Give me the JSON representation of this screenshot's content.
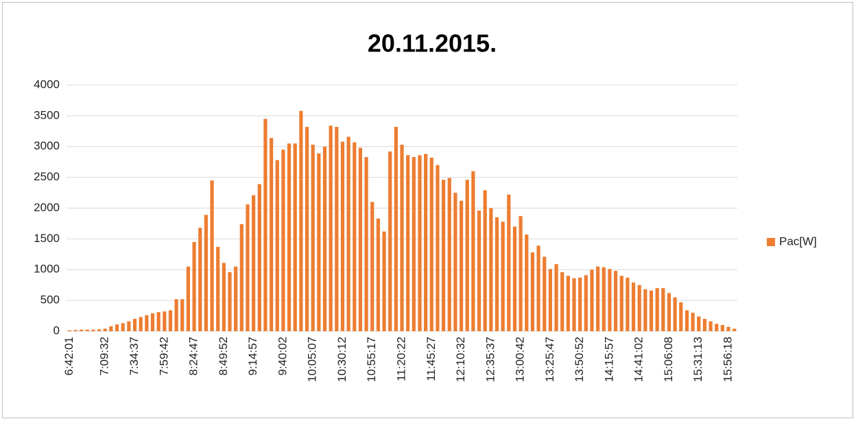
{
  "chart_data": {
    "type": "bar",
    "title": "20.11.2015.",
    "categories": [
      "6:42:01",
      null,
      null,
      null,
      null,
      null,
      "7:09:32",
      null,
      null,
      null,
      null,
      "7:34:37",
      null,
      null,
      null,
      null,
      "7:59:42",
      null,
      null,
      null,
      null,
      "8:24:47",
      null,
      null,
      null,
      null,
      "8:49:52",
      null,
      null,
      null,
      null,
      "9:14:57",
      null,
      null,
      null,
      null,
      "9:40:02",
      null,
      null,
      null,
      null,
      "10:05:07",
      null,
      null,
      null,
      null,
      "10:30:12",
      null,
      null,
      null,
      null,
      "10:55:17",
      null,
      null,
      null,
      null,
      "11:20:22",
      null,
      null,
      null,
      null,
      "11:45:27",
      null,
      null,
      null,
      null,
      "12:10:32",
      null,
      null,
      null,
      null,
      "12:35:37",
      null,
      null,
      null,
      null,
      "13:00:42",
      null,
      null,
      null,
      null,
      "13:25:47",
      null,
      null,
      null,
      null,
      "13:50:52",
      null,
      null,
      null,
      null,
      "14:15:57",
      null,
      null,
      null,
      null,
      "14:41:02",
      null,
      null,
      null,
      null,
      "15:06:08",
      null,
      null,
      null,
      null,
      "15:31:13",
      null,
      null,
      null,
      null,
      "15:56:18",
      null
    ],
    "series": [
      {
        "name": "Pac[W]",
        "color": "#ed7d31",
        "values": [
          15,
          20,
          25,
          25,
          25,
          30,
          40,
          80,
          110,
          130,
          160,
          200,
          230,
          260,
          290,
          310,
          320,
          340,
          520,
          520,
          1050,
          1450,
          1680,
          1890,
          2450,
          1370,
          1110,
          960,
          1050,
          1740,
          2060,
          2210,
          2390,
          3450,
          3140,
          2780,
          2950,
          3050,
          3050,
          3580,
          3320,
          3030,
          2890,
          3000,
          3340,
          3320,
          3080,
          3160,
          3070,
          2980,
          2830,
          2100,
          1830,
          1620,
          2920,
          3320,
          3030,
          2860,
          2830,
          2860,
          2880,
          2820,
          2700,
          2460,
          2490,
          2250,
          2120,
          2460,
          2600,
          1960,
          2290,
          2000,
          1850,
          1780,
          2220,
          1700,
          1870,
          1570,
          1280,
          1390,
          1210,
          1010,
          1090,
          960,
          900,
          860,
          870,
          910,
          1000,
          1050,
          1040,
          1010,
          980,
          900,
          870,
          790,
          750,
          680,
          660,
          700,
          700,
          620,
          550,
          470,
          340,
          300,
          240,
          200,
          160,
          120,
          100,
          70,
          40
        ]
      }
    ],
    "ylim": [
      0,
      4000
    ],
    "yticks": [
      0,
      500,
      1000,
      1500,
      2000,
      2500,
      3000,
      3500,
      4000
    ],
    "grid": true,
    "legend": "right"
  }
}
